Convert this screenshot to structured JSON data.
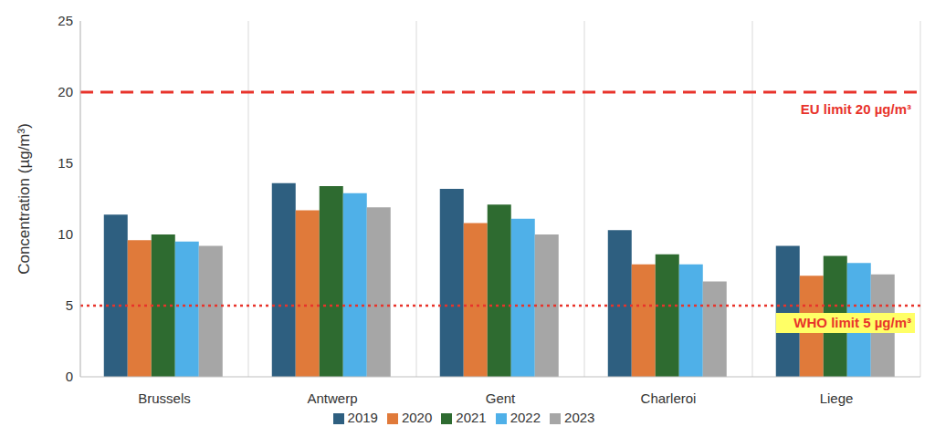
{
  "chart_data": {
    "type": "bar",
    "y_label": "Concentration (µg/m³)",
    "categories": [
      "Brussels",
      "Antwerp",
      "Gent",
      "Charleroi",
      "Liege"
    ],
    "series": [
      {
        "name": "2019",
        "color": "#2e5f80",
        "values": [
          11.4,
          13.6,
          13.2,
          10.3,
          9.2
        ]
      },
      {
        "name": "2020",
        "color": "#e07a3a",
        "values": [
          9.6,
          11.7,
          10.8,
          7.9,
          7.1
        ]
      },
      {
        "name": "2021",
        "color": "#2e6b30",
        "values": [
          10.0,
          13.4,
          12.1,
          8.6,
          8.5
        ]
      },
      {
        "name": "2022",
        "color": "#4fb0e8",
        "values": [
          9.5,
          12.9,
          11.1,
          7.9,
          8.0
        ]
      },
      {
        "name": "2023",
        "color": "#a6a6a6",
        "values": [
          9.2,
          11.9,
          10.0,
          6.7,
          7.2
        ]
      }
    ],
    "ylim": [
      0,
      25
    ],
    "yticks": [
      0,
      5,
      10,
      15,
      20,
      25
    ],
    "grid": true,
    "legend": "bottom",
    "annotations": [
      {
        "text": "EU limit 20 µg/m³",
        "value": 20,
        "color": "#e8332b",
        "line_style": "dashed"
      },
      {
        "text": "WHO limit 5 µg/m³",
        "value": 5,
        "color": "#e8332b",
        "line_style": "dotted"
      }
    ]
  }
}
